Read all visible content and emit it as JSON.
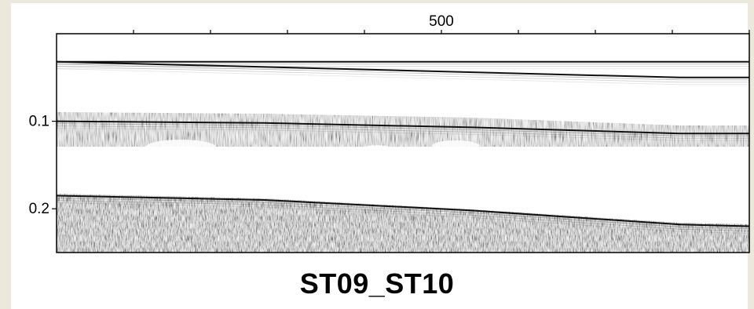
{
  "chart_data": {
    "type": "heatmap",
    "title": "ST09_ST10",
    "x_ticks": [
      {
        "value": 500,
        "label": "500"
      }
    ],
    "x_minor_tick_count": 9,
    "y_ticks": [
      {
        "value": 0.1,
        "label": "0.1"
      },
      {
        "value": 0.2,
        "label": "0.2"
      }
    ],
    "ylim": [
      0.0,
      0.25
    ],
    "y_inverted": true,
    "grid": false,
    "colormap": "grayscale",
    "reflectors": [
      {
        "name": "seafloor",
        "x_frac": [
          0,
          1
        ],
        "y": [
          0.032,
          0.032
        ]
      },
      {
        "name": "upper-bright-zone-base",
        "x_frac": [
          0,
          0.9,
          1
        ],
        "y": [
          0.032,
          0.05,
          0.05
        ]
      },
      {
        "name": "subbottom-top",
        "x_frac": [
          0,
          0.3,
          0.6,
          0.9,
          1
        ],
        "y": [
          0.1,
          0.102,
          0.107,
          0.114,
          0.114
        ]
      },
      {
        "name": "lower-unit-top",
        "x_frac": [
          0,
          0.3,
          0.6,
          0.9,
          1
        ],
        "y": [
          0.185,
          0.19,
          0.202,
          0.218,
          0.22
        ]
      }
    ]
  },
  "caption": "ST09_ST10"
}
